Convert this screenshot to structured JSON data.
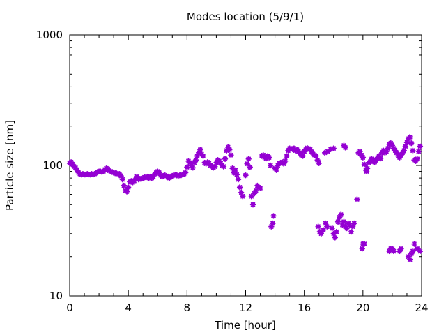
{
  "chart_data": {
    "type": "scatter",
    "title": "Modes location (5/9/1)",
    "xlabel": "Time [hour]",
    "ylabel": "Particle size [nm]",
    "xlim": [
      0,
      24
    ],
    "ylim": [
      10,
      1000
    ],
    "yscale": "log",
    "grid": false,
    "x_ticks": [
      0,
      4,
      8,
      12,
      16,
      20,
      24
    ],
    "x_tick_labels": [
      "0",
      "4",
      "8",
      "12",
      "16",
      "20",
      "24"
    ],
    "x_minor_step": 1,
    "y_ticks": [
      10,
      100,
      1000
    ],
    "y_tick_labels": [
      "10",
      "100",
      "1000"
    ],
    "marker": "star",
    "marker_color": "#9400d3",
    "points": [
      [
        0.0,
        104
      ],
      [
        0.1,
        106
      ],
      [
        0.2,
        102
      ],
      [
        0.3,
        98
      ],
      [
        0.4,
        96
      ],
      [
        0.5,
        92
      ],
      [
        0.6,
        88
      ],
      [
        0.7,
        86
      ],
      [
        0.8,
        85
      ],
      [
        0.9,
        86
      ],
      [
        1.0,
        85
      ],
      [
        1.1,
        85
      ],
      [
        1.2,
        86
      ],
      [
        1.3,
        85
      ],
      [
        1.4,
        85
      ],
      [
        1.5,
        86
      ],
      [
        1.6,
        85
      ],
      [
        1.7,
        86
      ],
      [
        1.8,
        87
      ],
      [
        1.9,
        89
      ],
      [
        2.0,
        90
      ],
      [
        2.1,
        90
      ],
      [
        2.2,
        89
      ],
      [
        2.3,
        90
      ],
      [
        2.4,
        93
      ],
      [
        2.5,
        95
      ],
      [
        2.6,
        94
      ],
      [
        2.7,
        91
      ],
      [
        2.8,
        90
      ],
      [
        2.9,
        89
      ],
      [
        3.0,
        88
      ],
      [
        3.1,
        87
      ],
      [
        3.2,
        87
      ],
      [
        3.3,
        86
      ],
      [
        3.4,
        86
      ],
      [
        3.5,
        83
      ],
      [
        3.6,
        78
      ],
      [
        3.7,
        70
      ],
      [
        3.8,
        64
      ],
      [
        3.9,
        63
      ],
      [
        4.0,
        68
      ],
      [
        4.1,
        75
      ],
      [
        4.2,
        76
      ],
      [
        4.3,
        74
      ],
      [
        4.4,
        76
      ],
      [
        4.5,
        79
      ],
      [
        4.6,
        82
      ],
      [
        4.7,
        78
      ],
      [
        4.8,
        79
      ],
      [
        4.9,
        79
      ],
      [
        5.0,
        80
      ],
      [
        5.1,
        81
      ],
      [
        5.2,
        81
      ],
      [
        5.3,
        82
      ],
      [
        5.4,
        80
      ],
      [
        5.5,
        82
      ],
      [
        5.6,
        80
      ],
      [
        5.7,
        82
      ],
      [
        5.8,
        86
      ],
      [
        5.9,
        88
      ],
      [
        6.0,
        90
      ],
      [
        6.1,
        88
      ],
      [
        6.2,
        84
      ],
      [
        6.3,
        82
      ],
      [
        6.4,
        83
      ],
      [
        6.5,
        84
      ],
      [
        6.6,
        83
      ],
      [
        6.7,
        81
      ],
      [
        6.8,
        80
      ],
      [
        6.9,
        82
      ],
      [
        7.0,
        83
      ],
      [
        7.1,
        84
      ],
      [
        7.2,
        85
      ],
      [
        7.3,
        84
      ],
      [
        7.4,
        83
      ],
      [
        7.5,
        84
      ],
      [
        7.6,
        84
      ],
      [
        7.7,
        85
      ],
      [
        7.8,
        86
      ],
      [
        7.9,
        88
      ],
      [
        8.0,
        97
      ],
      [
        8.1,
        108
      ],
      [
        8.2,
        105
      ],
      [
        8.3,
        100
      ],
      [
        8.4,
        96
      ],
      [
        8.5,
        105
      ],
      [
        8.6,
        110
      ],
      [
        8.7,
        118
      ],
      [
        8.8,
        125
      ],
      [
        8.9,
        132
      ],
      [
        9.0,
        122
      ],
      [
        9.1,
        118
      ],
      [
        9.2,
        105
      ],
      [
        9.3,
        103
      ],
      [
        9.4,
        106
      ],
      [
        9.5,
        104
      ],
      [
        9.6,
        100
      ],
      [
        9.7,
        98
      ],
      [
        9.8,
        96
      ],
      [
        9.9,
        98
      ],
      [
        10.0,
        105
      ],
      [
        10.1,
        110
      ],
      [
        10.2,
        108
      ],
      [
        10.3,
        104
      ],
      [
        10.4,
        100
      ],
      [
        10.5,
        98
      ],
      [
        10.6,
        112
      ],
      [
        10.7,
        130
      ],
      [
        10.8,
        138
      ],
      [
        10.9,
        132
      ],
      [
        11.0,
        120
      ],
      [
        11.1,
        95
      ],
      [
        11.2,
        88
      ],
      [
        11.3,
        92
      ],
      [
        11.4,
        85
      ],
      [
        11.5,
        78
      ],
      [
        11.6,
        68
      ],
      [
        11.7,
        62
      ],
      [
        11.8,
        58
      ],
      [
        12.0,
        84
      ],
      [
        12.1,
        103
      ],
      [
        12.2,
        112
      ],
      [
        12.3,
        97
      ],
      [
        12.4,
        58
      ],
      [
        12.5,
        50
      ],
      [
        12.6,
        61
      ],
      [
        12.7,
        64
      ],
      [
        12.8,
        70
      ],
      [
        12.9,
        68
      ],
      [
        13.0,
        67
      ],
      [
        13.1,
        118
      ],
      [
        13.2,
        120
      ],
      [
        13.3,
        115
      ],
      [
        13.4,
        113
      ],
      [
        13.5,
        118
      ],
      [
        13.6,
        115
      ],
      [
        13.7,
        100
      ],
      [
        13.75,
        34
      ],
      [
        13.85,
        36
      ],
      [
        13.9,
        41
      ],
      [
        14.0,
        95
      ],
      [
        14.1,
        92
      ],
      [
        14.2,
        100
      ],
      [
        14.3,
        104
      ],
      [
        14.4,
        105
      ],
      [
        14.5,
        106
      ],
      [
        14.6,
        103
      ],
      [
        14.7,
        108
      ],
      [
        14.8,
        118
      ],
      [
        14.9,
        130
      ],
      [
        15.0,
        135
      ],
      [
        15.1,
        134
      ],
      [
        15.2,
        133
      ],
      [
        15.3,
        135
      ],
      [
        15.4,
        130
      ],
      [
        15.5,
        132
      ],
      [
        15.6,
        128
      ],
      [
        15.7,
        125
      ],
      [
        15.8,
        120
      ],
      [
        15.9,
        118
      ],
      [
        16.0,
        128
      ],
      [
        16.1,
        132
      ],
      [
        16.2,
        136
      ],
      [
        16.3,
        134
      ],
      [
        16.4,
        133
      ],
      [
        16.5,
        127
      ],
      [
        16.6,
        122
      ],
      [
        16.7,
        120
      ],
      [
        16.8,
        118
      ],
      [
        16.9,
        110
      ],
      [
        17.0,
        104
      ],
      [
        16.95,
        34
      ],
      [
        17.05,
        31
      ],
      [
        17.15,
        30
      ],
      [
        17.3,
        32
      ],
      [
        17.45,
        36
      ],
      [
        17.55,
        34
      ],
      [
        17.4,
        125
      ],
      [
        17.6,
        128
      ],
      [
        17.8,
        133
      ],
      [
        18.0,
        135
      ],
      [
        17.9,
        33
      ],
      [
        18.0,
        30
      ],
      [
        18.1,
        28
      ],
      [
        18.2,
        31
      ],
      [
        18.3,
        37
      ],
      [
        18.4,
        40
      ],
      [
        18.5,
        42
      ],
      [
        18.6,
        35
      ],
      [
        18.7,
        37
      ],
      [
        18.8,
        34
      ],
      [
        18.9,
        33
      ],
      [
        19.0,
        36
      ],
      [
        19.1,
        35
      ],
      [
        19.2,
        31
      ],
      [
        19.3,
        34
      ],
      [
        19.4,
        36
      ],
      [
        18.7,
        142
      ],
      [
        18.8,
        137
      ],
      [
        19.6,
        55
      ],
      [
        19.7,
        125
      ],
      [
        19.8,
        128
      ],
      [
        19.9,
        120
      ],
      [
        20.0,
        115
      ],
      [
        20.1,
        102
      ],
      [
        20.2,
        92
      ],
      [
        20.25,
        90
      ],
      [
        19.95,
        23
      ],
      [
        20.0,
        25
      ],
      [
        20.1,
        25
      ],
      [
        20.3,
        95
      ],
      [
        20.4,
        105
      ],
      [
        20.5,
        107
      ],
      [
        20.6,
        112
      ],
      [
        20.7,
        108
      ],
      [
        20.8,
        106
      ],
      [
        20.9,
        110
      ],
      [
        21.0,
        115
      ],
      [
        21.1,
        118
      ],
      [
        21.2,
        113
      ],
      [
        21.3,
        125
      ],
      [
        21.4,
        130
      ],
      [
        21.5,
        125
      ],
      [
        21.6,
        128
      ],
      [
        21.7,
        135
      ],
      [
        21.8,
        145
      ],
      [
        21.9,
        148
      ],
      [
        22.0,
        142
      ],
      [
        22.1,
        135
      ],
      [
        22.2,
        130
      ],
      [
        22.3,
        125
      ],
      [
        22.4,
        118
      ],
      [
        22.5,
        115
      ],
      [
        22.6,
        120
      ],
      [
        22.7,
        125
      ],
      [
        22.8,
        130
      ],
      [
        22.9,
        140
      ],
      [
        23.0,
        150
      ],
      [
        23.1,
        160
      ],
      [
        23.2,
        165
      ],
      [
        23.3,
        148
      ],
      [
        23.4,
        130
      ],
      [
        23.5,
        110
      ],
      [
        23.6,
        108
      ],
      [
        23.7,
        112
      ],
      [
        23.8,
        128
      ],
      [
        23.9,
        140
      ],
      [
        21.8,
        22
      ],
      [
        21.9,
        23
      ],
      [
        22.0,
        23
      ],
      [
        22.1,
        22
      ],
      [
        22.5,
        22
      ],
      [
        22.6,
        23
      ],
      [
        23.1,
        20
      ],
      [
        23.2,
        19
      ],
      [
        23.3,
        21
      ],
      [
        23.4,
        22
      ],
      [
        23.5,
        25
      ],
      [
        23.7,
        23
      ],
      [
        23.9,
        22
      ]
    ]
  }
}
